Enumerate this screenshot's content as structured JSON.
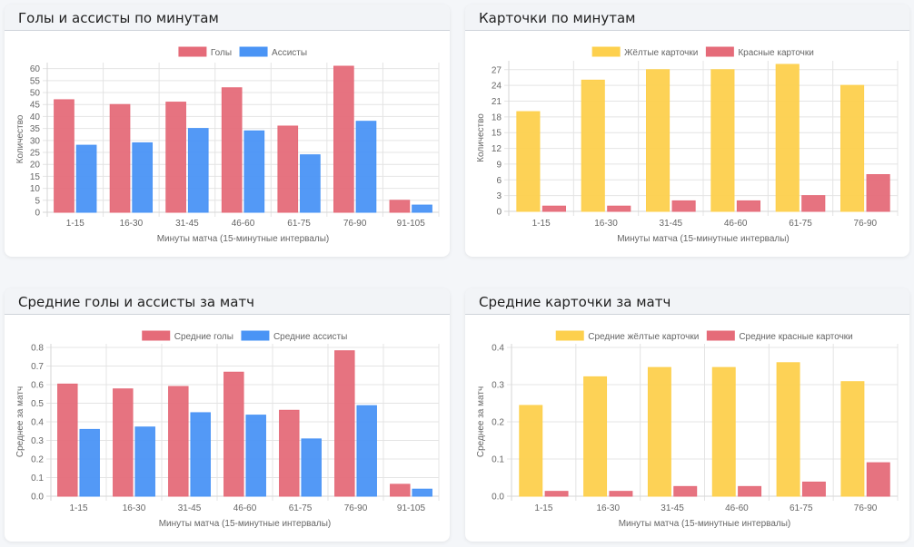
{
  "page": {
    "background": "#f4f6f9"
  },
  "colors": {
    "goals": "#e56b79",
    "assists": "#4a94f5",
    "yellow": "#fdd04d",
    "red": "#e56b79"
  },
  "chart_data": [
    {
      "id": "c1",
      "type": "bar",
      "title": "Голы и ассисты по минутам",
      "categories": [
        "1-15",
        "16-30",
        "31-45",
        "46-60",
        "61-75",
        "76-90",
        "91-105"
      ],
      "series": [
        {
          "name": "Голы",
          "color_key": "goals",
          "values": [
            47,
            45,
            46,
            52,
            36,
            61,
            5
          ]
        },
        {
          "name": "Ассисты",
          "color_key": "assists",
          "values": [
            28,
            29,
            35,
            34,
            24,
            38,
            3
          ]
        }
      ],
      "xlabel": "Минуты матча (15-минутные интервалы)",
      "ylabel": "Количество",
      "ylim": [
        0,
        61
      ],
      "yticks": [
        0,
        5,
        10,
        15,
        20,
        25,
        30,
        35,
        40,
        45,
        50,
        55,
        60
      ],
      "tick_decimals": 0,
      "grid": true,
      "legend": "top-center"
    },
    {
      "id": "c2",
      "type": "bar",
      "title": "Карточки по минутам",
      "categories": [
        "1-15",
        "16-30",
        "31-45",
        "46-60",
        "61-75",
        "76-90"
      ],
      "series": [
        {
          "name": "Жёлтые карточки",
          "color_key": "yellow",
          "values": [
            19,
            25,
            27,
            27,
            28,
            24
          ]
        },
        {
          "name": "Красные карточки",
          "color_key": "red",
          "values": [
            1,
            1,
            2,
            2,
            3,
            7
          ]
        }
      ],
      "xlabel": "Минуты матча (15-минутные интервалы)",
      "ylabel": "Количество",
      "ylim": [
        0,
        28
      ],
      "yticks": [
        0,
        3,
        6,
        9,
        12,
        15,
        18,
        21,
        24,
        27
      ],
      "tick_decimals": 0,
      "grid": true,
      "legend": "top-center"
    },
    {
      "id": "c3",
      "type": "bar",
      "title": "Средние голы и ассисты за матч",
      "categories": [
        "1-15",
        "16-30",
        "31-45",
        "46-60",
        "61-75",
        "76-90",
        "91-105"
      ],
      "series": [
        {
          "name": "Средние голы",
          "color_key": "goals",
          "values": [
            0.603,
            0.577,
            0.59,
            0.667,
            0.462,
            0.782,
            0.064
          ]
        },
        {
          "name": "Средние ассисты",
          "color_key": "assists",
          "values": [
            0.359,
            0.372,
            0.449,
            0.436,
            0.308,
            0.487,
            0.038
          ]
        }
      ],
      "xlabel": "Минуты матча (15-минутные интервалы)",
      "ylabel": "Среднее за матч",
      "ylim": [
        0,
        0.8
      ],
      "yticks": [
        0.0,
        0.1,
        0.2,
        0.3,
        0.4,
        0.5,
        0.6,
        0.7,
        0.8
      ],
      "tick_decimals": 1,
      "grid": true,
      "legend": "top-center"
    },
    {
      "id": "c4",
      "type": "bar",
      "title": "Средние карточки за матч",
      "categories": [
        "1-15",
        "16-30",
        "31-45",
        "46-60",
        "61-75",
        "76-90"
      ],
      "series": [
        {
          "name": "Средние жёлтые карточки",
          "color_key": "yellow",
          "values": [
            0.244,
            0.321,
            0.346,
            0.346,
            0.359,
            0.308
          ]
        },
        {
          "name": "Средние красные карточки",
          "color_key": "red",
          "values": [
            0.013,
            0.013,
            0.026,
            0.026,
            0.038,
            0.09
          ]
        }
      ],
      "xlabel": "Минуты матча (15-минутные интервалы)",
      "ylabel": "Среднее за матч",
      "ylim": [
        0,
        0.4
      ],
      "yticks": [
        0.0,
        0.1,
        0.2,
        0.3,
        0.4
      ],
      "tick_decimals": 1,
      "grid": true,
      "legend": "top-center"
    }
  ]
}
